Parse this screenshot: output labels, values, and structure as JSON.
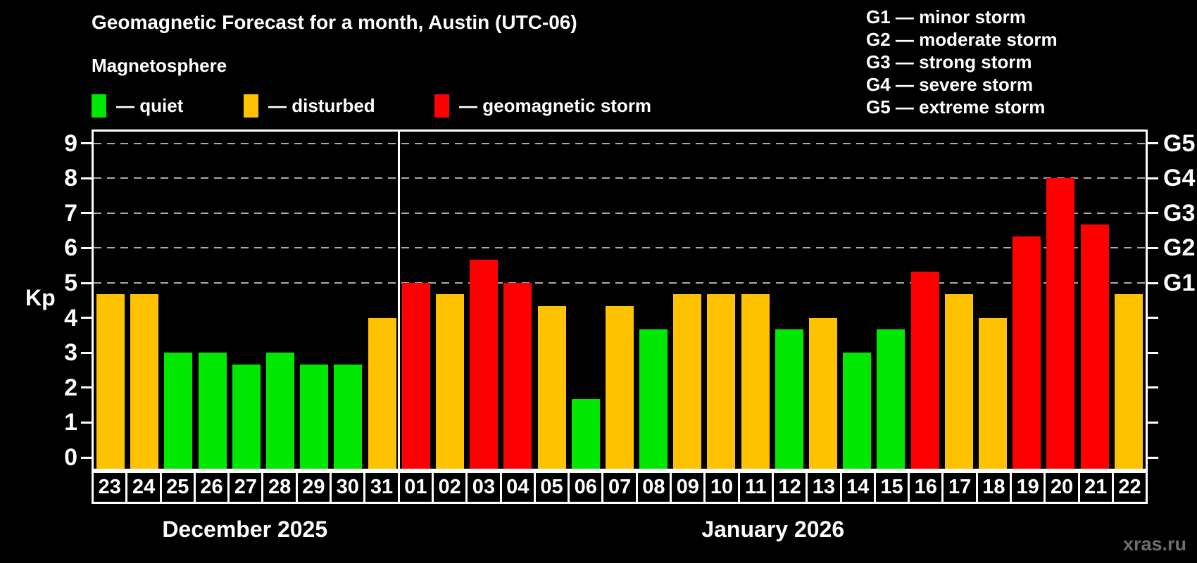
{
  "title": "Geomagnetic Forecast for a month, Austin (UTC-06)",
  "subtitle": "Magnetosphere",
  "legend": {
    "items": [
      {
        "id": "quiet",
        "label": "— quiet",
        "color": "#00e800"
      },
      {
        "id": "disturbed",
        "label": "— disturbed",
        "color": "#ffc200"
      },
      {
        "id": "storm",
        "label": "— geomagnetic storm",
        "color": "#fd0000"
      }
    ]
  },
  "storm_scale_legend": {
    "items": [
      "G1 — minor storm",
      "G2 — moderate storm",
      "G3 — strong storm",
      "G4 — severe storm",
      "G5 — extreme storm"
    ]
  },
  "watermark": "xras.ru",
  "chart_data": {
    "type": "bar",
    "title": "Geomagnetic Forecast for a month, Austin (UTC-06)",
    "ylabel": "Kp",
    "ylim": [
      0,
      9.4
    ],
    "y_ticks": [
      0,
      1,
      2,
      3,
      4,
      5,
      6,
      7,
      8,
      9
    ],
    "gridlines_kp": [
      5,
      6,
      7,
      8,
      9
    ],
    "grid": "dashed horizontal at storm levels only",
    "right_axis_labels": [
      {
        "label": "G1",
        "kp": 5
      },
      {
        "label": "G2",
        "kp": 6
      },
      {
        "label": "G3",
        "kp": 7
      },
      {
        "label": "G4",
        "kp": 8
      },
      {
        "label": "G5",
        "kp": 9
      }
    ],
    "status_colors": {
      "quiet": "#00e800",
      "disturbed": "#ffc200",
      "storm": "#fd0000"
    },
    "months": [
      {
        "label": "December 2025",
        "days": 9
      },
      {
        "label": "January 2026",
        "days": 22
      }
    ],
    "bars": [
      {
        "day": "23",
        "kp": 4.67,
        "status": "disturbed"
      },
      {
        "day": "24",
        "kp": 4.67,
        "status": "disturbed"
      },
      {
        "day": "25",
        "kp": 3.0,
        "status": "quiet"
      },
      {
        "day": "26",
        "kp": 3.0,
        "status": "quiet"
      },
      {
        "day": "27",
        "kp": 2.67,
        "status": "quiet"
      },
      {
        "day": "28",
        "kp": 3.0,
        "status": "quiet"
      },
      {
        "day": "29",
        "kp": 2.67,
        "status": "quiet"
      },
      {
        "day": "30",
        "kp": 2.67,
        "status": "quiet"
      },
      {
        "day": "31",
        "kp": 4.0,
        "status": "disturbed"
      },
      {
        "day": "01",
        "kp": 5.0,
        "status": "storm"
      },
      {
        "day": "02",
        "kp": 4.67,
        "status": "disturbed"
      },
      {
        "day": "03",
        "kp": 5.67,
        "status": "storm"
      },
      {
        "day": "04",
        "kp": 5.0,
        "status": "storm"
      },
      {
        "day": "05",
        "kp": 4.33,
        "status": "disturbed"
      },
      {
        "day": "06",
        "kp": 1.67,
        "status": "quiet"
      },
      {
        "day": "07",
        "kp": 4.33,
        "status": "disturbed"
      },
      {
        "day": "08",
        "kp": 3.67,
        "status": "quiet"
      },
      {
        "day": "09",
        "kp": 4.67,
        "status": "disturbed"
      },
      {
        "day": "10",
        "kp": 4.67,
        "status": "disturbed"
      },
      {
        "day": "11",
        "kp": 4.67,
        "status": "disturbed"
      },
      {
        "day": "12",
        "kp": 3.67,
        "status": "quiet"
      },
      {
        "day": "13",
        "kp": 4.0,
        "status": "disturbed"
      },
      {
        "day": "14",
        "kp": 3.0,
        "status": "quiet"
      },
      {
        "day": "15",
        "kp": 3.67,
        "status": "quiet"
      },
      {
        "day": "16",
        "kp": 5.33,
        "status": "storm"
      },
      {
        "day": "17",
        "kp": 4.67,
        "status": "disturbed"
      },
      {
        "day": "18",
        "kp": 4.0,
        "status": "disturbed"
      },
      {
        "day": "19",
        "kp": 6.33,
        "status": "storm"
      },
      {
        "day": "20",
        "kp": 8.0,
        "status": "storm"
      },
      {
        "day": "21",
        "kp": 6.67,
        "status": "storm"
      },
      {
        "day": "22",
        "kp": 4.67,
        "status": "disturbed"
      }
    ]
  }
}
